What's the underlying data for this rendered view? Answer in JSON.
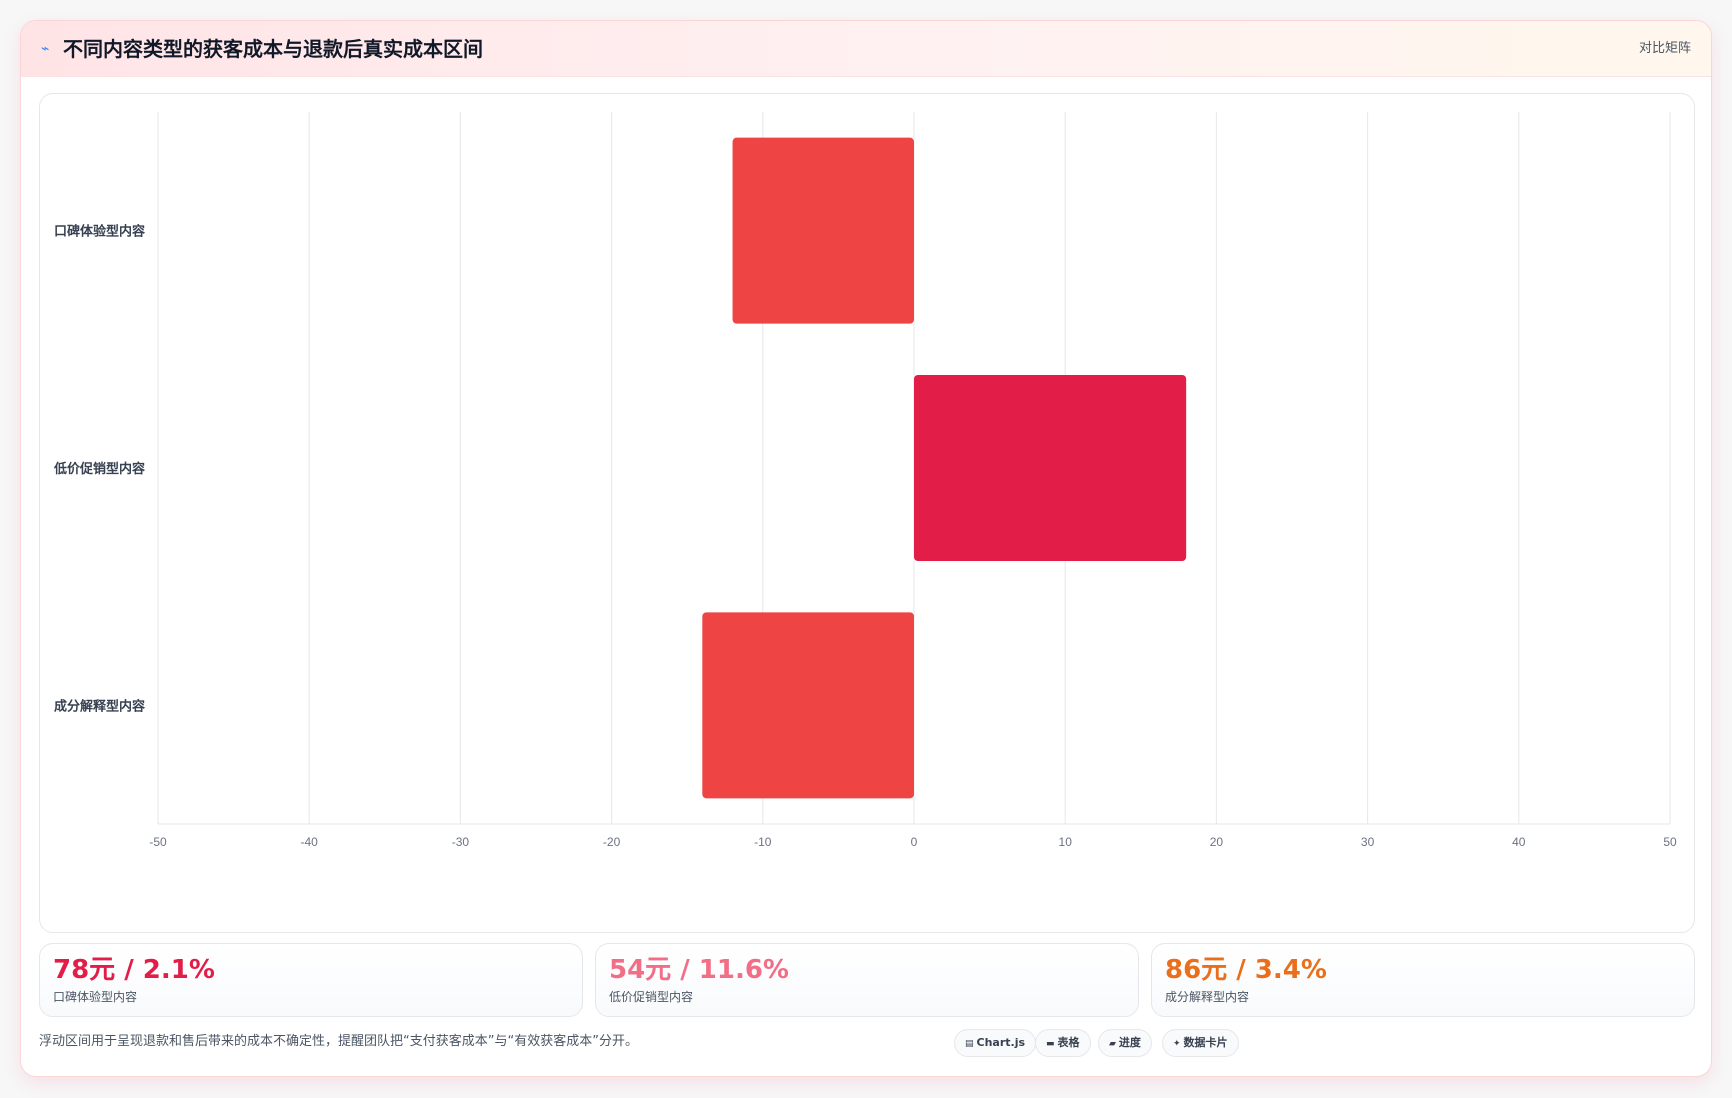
{
  "header": {
    "icon": "trend-line-icon",
    "title": "不同内容类型的获客成本与退款后真实成本区间",
    "view_mode": "对比矩阵"
  },
  "colors": {
    "bar_primary": "#ef4444",
    "bar_accent": "#e11d48",
    "stat_1": "#e11d48",
    "stat_2": "#f26d86",
    "stat_3": "#ea6f1c"
  },
  "chart_data": {
    "type": "bar",
    "orientation": "horizontal",
    "categories": [
      "口碑体验型内容",
      "低价促销型内容",
      "成分解释型内容"
    ],
    "values": [
      -12,
      18,
      -14
    ],
    "title": "",
    "xlabel": "",
    "ylabel": "",
    "xlim": [
      -50,
      50
    ],
    "xticks": [
      -50,
      -40,
      -30,
      -20,
      -10,
      0,
      10,
      20,
      30,
      40,
      50
    ],
    "grid": true,
    "legend": "none"
  },
  "stats": [
    {
      "value": "78元 / 2.1%",
      "label": "口碑体验型内容"
    },
    {
      "value": "54元 / 11.6%",
      "label": "低价促销型内容"
    },
    {
      "value": "86元 / 3.4%",
      "label": "成分解释型内容"
    }
  ],
  "footnote": "浮动区间用于呈现退款和售后带来的成本不确定性，提醒团队把“支付获客成本”与“有效获客成本”分开。",
  "tags": [
    {
      "label": "Chart.js",
      "icon": "chart-icon"
    },
    {
      "label": "表格",
      "icon": "table-icon"
    },
    {
      "label": "进度",
      "icon": "progress-icon"
    },
    {
      "label": "数据卡片",
      "icon": "sparkle-icon"
    }
  ]
}
